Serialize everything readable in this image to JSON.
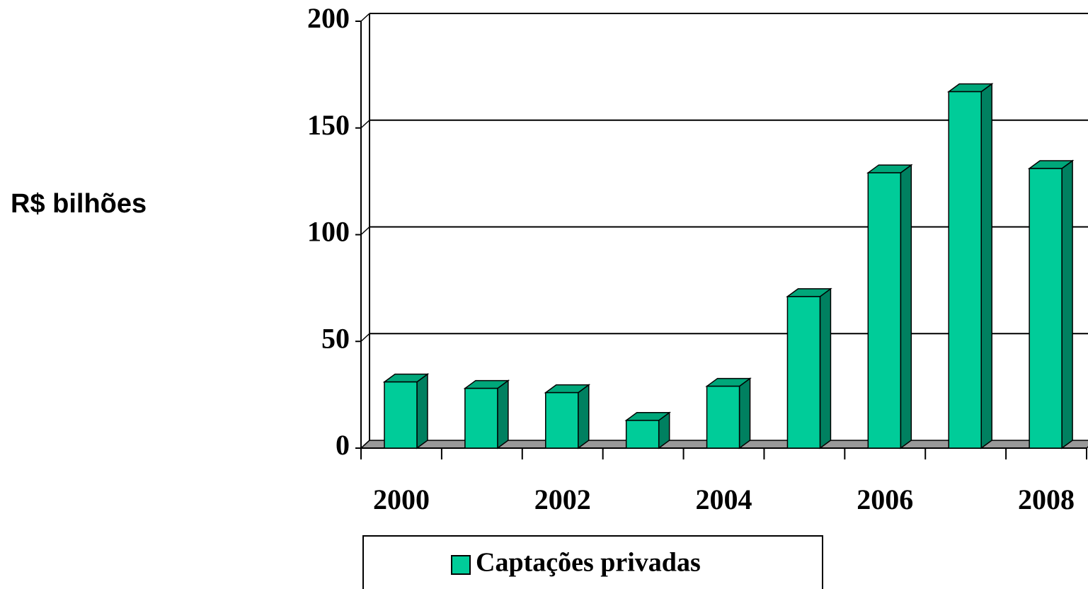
{
  "chart_data": {
    "type": "bar3d",
    "y_axis_label": "R$ bilhões",
    "categories": [
      "2000",
      null,
      "2002",
      null,
      "2004",
      null,
      "2006",
      null,
      "2008"
    ],
    "series": [
      {
        "name": "Captações privadas",
        "color": "#00cc99",
        "values": [
          31,
          28,
          26,
          13,
          29,
          71,
          129,
          167,
          131
        ]
      }
    ],
    "ylim": [
      0,
      200
    ],
    "yticks": [
      0,
      50,
      100,
      150,
      200
    ],
    "grid": true
  }
}
